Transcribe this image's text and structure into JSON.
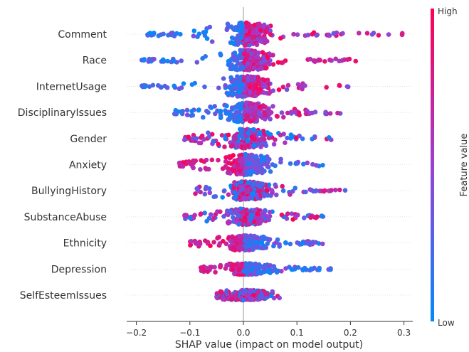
{
  "chart_data": {
    "type": "scatter",
    "subtype": "shap-beeswarm",
    "xlabel": "SHAP value (impact on model output)",
    "ylabel": "",
    "xlim": [
      -0.22,
      0.32
    ],
    "xticks": [
      -0.2,
      -0.1,
      0.0,
      0.1,
      0.2,
      0.3
    ],
    "xtick_labels": [
      "−0.2",
      "−0.1",
      "0.0",
      "0.1",
      "0.2",
      "0.3"
    ],
    "grid": false,
    "colorbar": {
      "label": "Feature value",
      "high_label": "High",
      "low_label": "Low",
      "low_color": "#008bfb",
      "high_color": "#ff0052"
    },
    "features": [
      {
        "name": "Comment",
        "min": -0.18,
        "max": 0.3,
        "spread": 1.0,
        "low_side": "left"
      },
      {
        "name": "Race",
        "min": -0.19,
        "max": 0.21,
        "spread": 0.9,
        "low_side": "left"
      },
      {
        "name": "InternetUsage",
        "min": -0.19,
        "max": 0.2,
        "spread": 0.9,
        "low_side": "left"
      },
      {
        "name": "DisciplinaryIssues",
        "min": -0.13,
        "max": 0.19,
        "spread": 0.85,
        "low_side": "left"
      },
      {
        "name": "Gender",
        "min": -0.11,
        "max": 0.17,
        "spread": 0.85,
        "low_side": "mixed"
      },
      {
        "name": "Anxiety",
        "min": -0.12,
        "max": 0.15,
        "spread": 0.9,
        "low_side": "right"
      },
      {
        "name": "BullyingHistory",
        "min": -0.09,
        "max": 0.2,
        "spread": 0.8,
        "low_side": "mixed"
      },
      {
        "name": "SubstanceAbuse",
        "min": -0.11,
        "max": 0.15,
        "spread": 0.7,
        "low_side": "mixed"
      },
      {
        "name": "Ethnicity",
        "min": -0.1,
        "max": 0.15,
        "spread": 0.65,
        "low_side": "right"
      },
      {
        "name": "Depression",
        "min": -0.08,
        "max": 0.17,
        "spread": 0.5,
        "low_side": "right"
      },
      {
        "name": "SelfEsteemIssues",
        "min": -0.05,
        "max": 0.07,
        "spread": 0.45,
        "low_side": "mixed"
      }
    ]
  }
}
